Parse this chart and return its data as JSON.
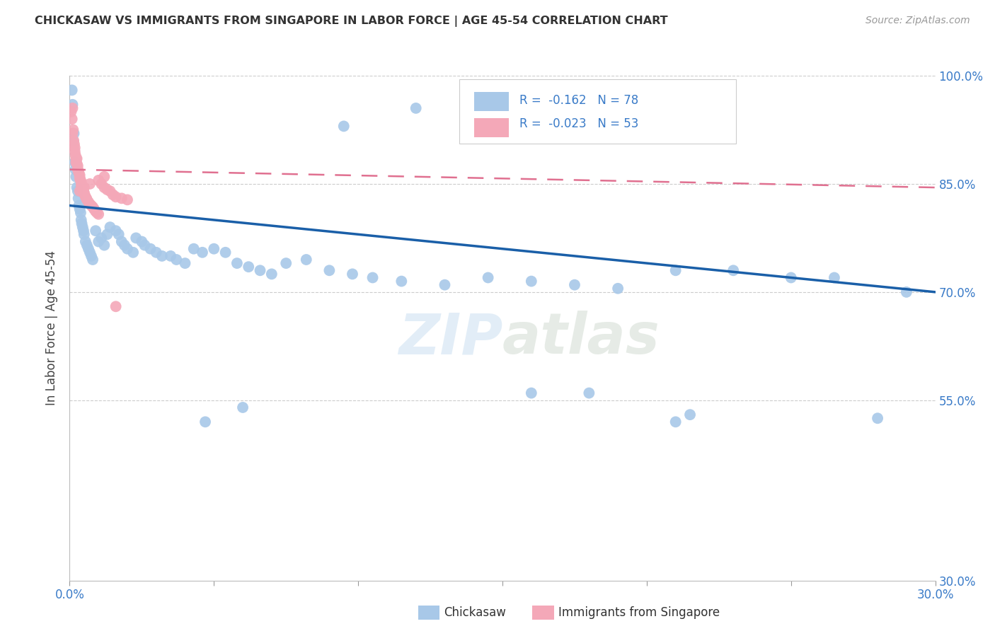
{
  "title": "CHICKASAW VS IMMIGRANTS FROM SINGAPORE IN LABOR FORCE | AGE 45-54 CORRELATION CHART",
  "source": "Source: ZipAtlas.com",
  "ylabel": "In Labor Force | Age 45-54",
  "xlim": [
    0.0,
    0.3
  ],
  "ylim": [
    0.3,
    1.0
  ],
  "R_blue": -0.162,
  "N_blue": 78,
  "R_pink": -0.023,
  "N_pink": 53,
  "blue_color": "#a8c8e8",
  "pink_color": "#f4a8b8",
  "blue_line_color": "#1a5fa8",
  "pink_line_color": "#e07090",
  "blue_scatter_x": [
    0.0008,
    0.001,
    0.0012,
    0.0015,
    0.0018,
    0.002,
    0.0022,
    0.0025,
    0.0028,
    0.003,
    0.0032,
    0.0035,
    0.0038,
    0.004,
    0.0042,
    0.0045,
    0.0048,
    0.005,
    0.0055,
    0.006,
    0.0065,
    0.007,
    0.0075,
    0.008,
    0.009,
    0.01,
    0.011,
    0.012,
    0.013,
    0.014,
    0.016,
    0.017,
    0.018,
    0.019,
    0.02,
    0.022,
    0.023,
    0.025,
    0.026,
    0.028,
    0.03,
    0.032,
    0.035,
    0.037,
    0.04,
    0.043,
    0.046,
    0.05,
    0.054,
    0.058,
    0.062,
    0.066,
    0.07,
    0.075,
    0.082,
    0.09,
    0.098,
    0.105,
    0.115,
    0.13,
    0.145,
    0.16,
    0.175,
    0.19,
    0.21,
    0.23,
    0.25,
    0.265,
    0.12,
    0.095,
    0.16,
    0.18,
    0.047,
    0.06,
    0.215,
    0.28,
    0.21,
    0.29
  ],
  "blue_scatter_y": [
    0.98,
    0.96,
    0.91,
    0.92,
    0.88,
    0.87,
    0.86,
    0.845,
    0.84,
    0.83,
    0.82,
    0.815,
    0.81,
    0.8,
    0.795,
    0.79,
    0.785,
    0.78,
    0.77,
    0.765,
    0.76,
    0.755,
    0.75,
    0.745,
    0.785,
    0.77,
    0.775,
    0.765,
    0.78,
    0.79,
    0.785,
    0.78,
    0.77,
    0.765,
    0.76,
    0.755,
    0.775,
    0.77,
    0.765,
    0.76,
    0.755,
    0.75,
    0.75,
    0.745,
    0.74,
    0.76,
    0.755,
    0.76,
    0.755,
    0.74,
    0.735,
    0.73,
    0.725,
    0.74,
    0.745,
    0.73,
    0.725,
    0.72,
    0.715,
    0.71,
    0.72,
    0.715,
    0.71,
    0.705,
    0.73,
    0.73,
    0.72,
    0.72,
    0.955,
    0.93,
    0.56,
    0.56,
    0.52,
    0.54,
    0.53,
    0.525,
    0.52,
    0.7
  ],
  "pink_scatter_x": [
    0.0005,
    0.0008,
    0.001,
    0.001,
    0.0012,
    0.0014,
    0.0016,
    0.0018,
    0.0018,
    0.002,
    0.0022,
    0.0022,
    0.0025,
    0.0025,
    0.0028,
    0.0028,
    0.003,
    0.0032,
    0.0035,
    0.0035,
    0.0038,
    0.004,
    0.004,
    0.0042,
    0.0045,
    0.0048,
    0.005,
    0.0052,
    0.0055,
    0.0058,
    0.006,
    0.0065,
    0.007,
    0.0075,
    0.008,
    0.0085,
    0.009,
    0.0095,
    0.01,
    0.011,
    0.012,
    0.013,
    0.014,
    0.015,
    0.016,
    0.018,
    0.02,
    0.016,
    0.012,
    0.01,
    0.007,
    0.005,
    0.0035
  ],
  "pink_scatter_y": [
    0.95,
    0.94,
    0.955,
    0.92,
    0.925,
    0.91,
    0.905,
    0.9,
    0.895,
    0.89,
    0.885,
    0.88,
    0.885,
    0.878,
    0.875,
    0.87,
    0.868,
    0.865,
    0.862,
    0.858,
    0.855,
    0.852,
    0.848,
    0.845,
    0.842,
    0.84,
    0.838,
    0.835,
    0.832,
    0.83,
    0.828,
    0.825,
    0.822,
    0.82,
    0.818,
    0.815,
    0.812,
    0.81,
    0.808,
    0.85,
    0.845,
    0.842,
    0.84,
    0.835,
    0.832,
    0.83,
    0.828,
    0.68,
    0.86,
    0.855,
    0.85,
    0.845,
    0.84
  ],
  "blue_trend_x": [
    0.0,
    0.3
  ],
  "blue_trend_y": [
    0.82,
    0.7
  ],
  "pink_trend_x": [
    0.0,
    0.3
  ],
  "pink_trend_y": [
    0.87,
    0.845
  ]
}
